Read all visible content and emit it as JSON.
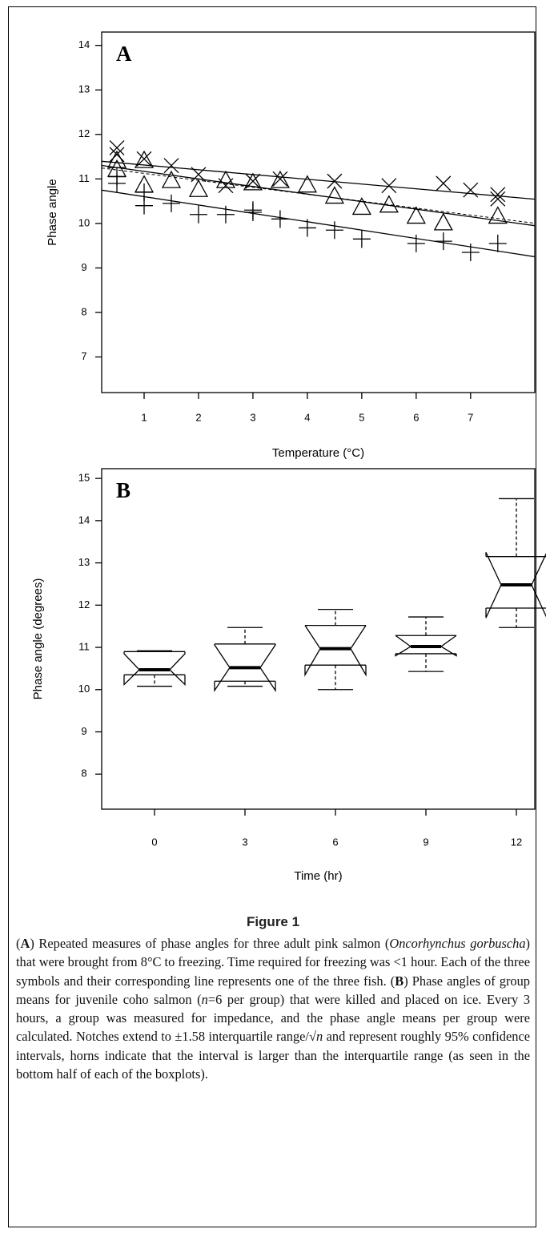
{
  "chart_data": [
    {
      "type": "scatter",
      "panel": "A",
      "ylabel": "Phase angle",
      "xlabel": "Temperature (°C)",
      "xlim": [
        0.22,
        8.18
      ],
      "ylim": [
        6.2,
        14.3
      ],
      "xticks": [
        1,
        2,
        3,
        4,
        5,
        6,
        7
      ],
      "yticks": [
        7,
        8,
        9,
        10,
        11,
        12,
        13,
        14
      ],
      "series": [
        {
          "marker": "x",
          "color": "#000000",
          "x": [
            0.5,
            0.5,
            1,
            1.5,
            2,
            2.5,
            3,
            3.5,
            4.5,
            5.5,
            6.5,
            7,
            7.5,
            7.5
          ],
          "values": [
            11.7,
            11.55,
            11.45,
            11.3,
            11.1,
            10.85,
            10.95,
            11.0,
            10.95,
            10.85,
            10.9,
            10.75,
            10.65,
            10.55
          ]
        },
        {
          "marker": "triangle",
          "color": "#000000",
          "x": [
            0.5,
            0.5,
            1,
            1,
            1.5,
            2,
            2.5,
            3,
            3.5,
            4,
            4.5,
            5,
            5.5,
            6,
            6.5,
            7.5
          ],
          "values": [
            11.4,
            11.2,
            10.85,
            11.4,
            10.95,
            10.75,
            10.95,
            10.9,
            10.95,
            10.85,
            10.6,
            10.35,
            10.4,
            10.15,
            10.0,
            10.15
          ]
        },
        {
          "marker": "plus",
          "color": "#000000",
          "x": [
            0.5,
            0.5,
            1,
            1,
            1.5,
            2,
            2.5,
            3,
            3,
            3.5,
            4,
            4.5,
            5,
            6,
            6.5,
            7,
            7.5
          ],
          "values": [
            10.9,
            11.05,
            10.4,
            10.7,
            10.45,
            10.2,
            10.2,
            10.25,
            10.3,
            10.1,
            9.9,
            9.85,
            9.65,
            9.55,
            9.6,
            9.35,
            9.55
          ]
        }
      ],
      "fit_lines": [
        {
          "intercept": 11.42,
          "slope": -0.107,
          "dashed": false
        },
        {
          "intercept": 11.34,
          "slope": -0.17,
          "dashed": false
        },
        {
          "intercept": 11.28,
          "slope": -0.156,
          "dashed": true
        },
        {
          "intercept": 10.79,
          "slope": -0.188,
          "dashed": false
        }
      ]
    },
    {
      "type": "boxplot",
      "panel": "B",
      "ylabel": "Phase angle (degrees)",
      "xlabel": "Time (hr)",
      "ylim": [
        7.17,
        15.23
      ],
      "yticks": [
        8,
        9,
        10,
        11,
        12,
        13,
        14,
        15
      ],
      "categories": [
        "0",
        "3",
        "6",
        "9",
        "12"
      ],
      "whisker_low": [
        10.08,
        10.08,
        10.0,
        10.43,
        11.47
      ],
      "q1": [
        10.35,
        10.2,
        10.58,
        10.85,
        11.93
      ],
      "median": [
        10.47,
        10.52,
        10.97,
        11.02,
        12.48
      ],
      "q3": [
        10.9,
        11.08,
        11.52,
        11.28,
        13.15
      ],
      "whisker_high": [
        10.92,
        11.47,
        11.9,
        11.72,
        14.52
      ],
      "notch_low": [
        10.12,
        9.98,
        10.35,
        10.8,
        11.7
      ],
      "notch_high": [
        10.85,
        11.06,
        11.52,
        11.28,
        13.25
      ]
    }
  ],
  "figure_label": "Figure 1",
  "caption": {
    "runs": [
      {
        "text": "(",
        "style": "normal"
      },
      {
        "text": "A",
        "style": "bold"
      },
      {
        "text": ") Repeated measures of phase angles for three adult pink salmon (",
        "style": "normal"
      },
      {
        "text": "Oncorhynchus gorbuscha",
        "style": "italic"
      },
      {
        "text": ") that were brought from 8°C to freezing. Time required for freezing was <1 hour. Each of the three symbols and their corresponding line represents one of the three fish. (",
        "style": "normal"
      },
      {
        "text": "B",
        "style": "bold"
      },
      {
        "text": ") Phase angles of group means for juvenile coho salmon (",
        "style": "normal"
      },
      {
        "text": "n",
        "style": "italic"
      },
      {
        "text": "=6 per group) that were killed and placed on ice. Every 3 hours, a group was measured for impedance, and the phase angle means per group were calculated. Notches extend to ±1.58 interquartile range/√",
        "style": "normal"
      },
      {
        "text": "n",
        "style": "italic"
      },
      {
        "text": " and represent roughly 95% confidence intervals, horns indicate that the interval is larger than the interquartile range (as seen in the bottom half of each of the boxplots).",
        "style": "normal"
      }
    ]
  }
}
